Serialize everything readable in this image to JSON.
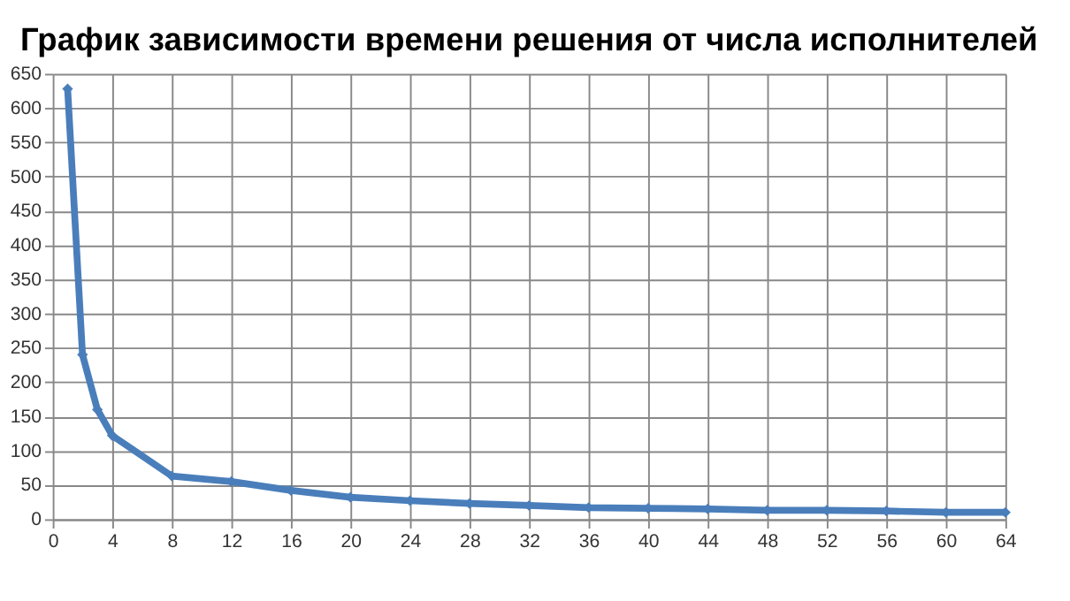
{
  "chart_data": {
    "type": "line",
    "title": "График зависимости времени решения от числа исполнителей",
    "x": [
      1,
      2,
      3,
      4,
      8,
      12,
      16,
      20,
      24,
      28,
      32,
      36,
      40,
      44,
      48,
      52,
      56,
      60,
      64
    ],
    "series": [
      {
        "color": "#4a7ebb",
        "values": [
          628,
          240,
          160,
          122,
          63,
          55,
          42,
          32,
          27,
          23,
          20,
          17,
          16,
          15,
          13,
          13,
          12,
          10,
          10
        ]
      }
    ],
    "xlim": [
      0,
      64
    ],
    "xticks": [
      0,
      4,
      8,
      12,
      16,
      20,
      24,
      28,
      32,
      36,
      40,
      44,
      48,
      52,
      56,
      60,
      64
    ],
    "ylim": [
      0,
      650
    ],
    "yticks": [
      0,
      50,
      100,
      150,
      200,
      250,
      300,
      350,
      400,
      450,
      500,
      550,
      600,
      650
    ],
    "grid": true,
    "marker": "diamond",
    "line_style": "solid"
  }
}
